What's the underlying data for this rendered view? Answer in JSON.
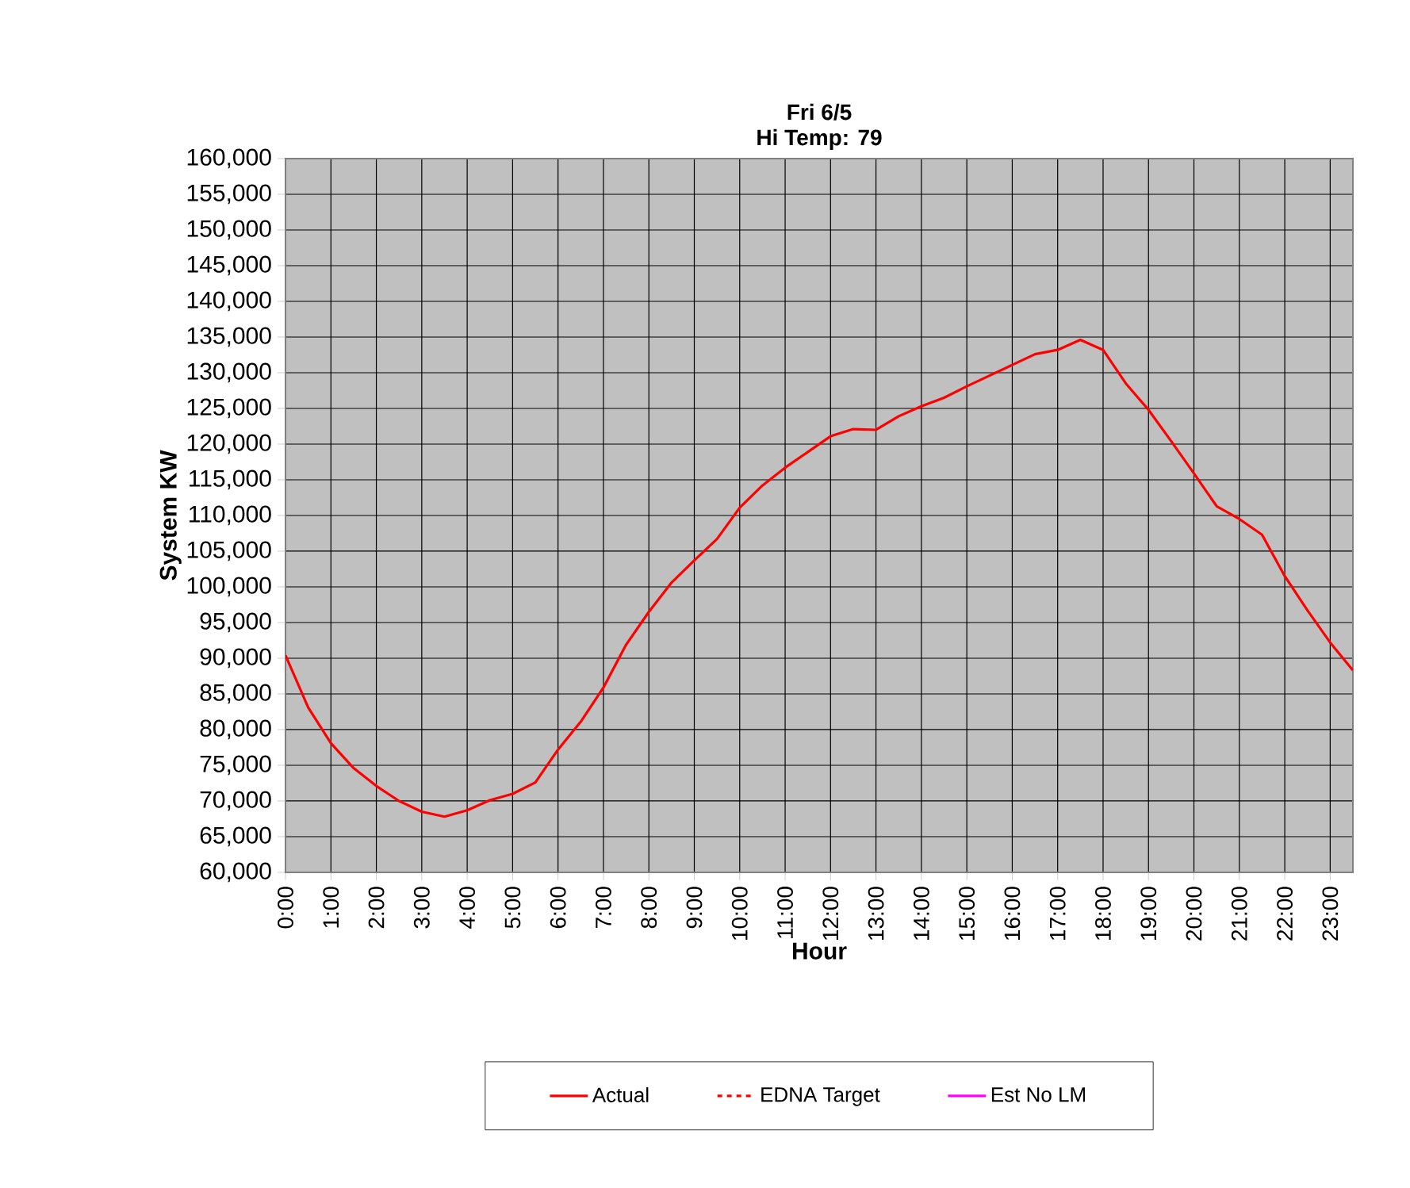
{
  "chart_data": {
    "type": "line",
    "title": "Fri 6/5",
    "subtitle": "Hi Temp: 79",
    "xlabel": "Hour",
    "ylabel": "System KW",
    "categories": [
      "0:00",
      null,
      "1:00",
      null,
      "2:00",
      null,
      "3:00",
      null,
      "4:00",
      null,
      "5:00",
      null,
      "6:00",
      null,
      "7:00",
      null,
      "8:00",
      null,
      "9:00",
      null,
      "10:00",
      null,
      "11:00",
      null,
      "12:00",
      null,
      "13:00",
      null,
      "14:00",
      null,
      "15:00",
      null,
      "16:00",
      null,
      "17:00",
      null,
      "18:00",
      null,
      "19:00",
      null,
      "20:00",
      null,
      "21:00",
      null,
      "22:00",
      null,
      "23:00",
      null
    ],
    "series": [
      {
        "name": "Actual",
        "color": "#ff0000",
        "line_style": "solid",
        "values": [
          90400,
          83100,
          78100,
          74600,
          72100,
          70000,
          68500,
          67800,
          68700,
          70100,
          71000,
          72600,
          77200,
          81100,
          85900,
          91900,
          96500,
          100600,
          103700,
          106700,
          111100,
          114200,
          116700,
          118900,
          121100,
          122100,
          122000,
          123900,
          125300,
          126500,
          128100,
          129600,
          131100,
          132600,
          133200,
          134600,
          133200,
          128500,
          124800,
          120400,
          115900,
          111300,
          109500,
          107300,
          101500,
          96700,
          92200,
          88300
        ]
      },
      {
        "name": "EDNA Target",
        "color": "#ff0000",
        "line_style": "dashed",
        "values": [
          null,
          null,
          null,
          null,
          null,
          null,
          null,
          null,
          null,
          null,
          null,
          null,
          null,
          null,
          null,
          null,
          null,
          null,
          null,
          null,
          null,
          null,
          null,
          null,
          null,
          null,
          null,
          null,
          null,
          null,
          null,
          null,
          null,
          null,
          null,
          null,
          null,
          null,
          null,
          null,
          null,
          null,
          null,
          null,
          null,
          null,
          null,
          null
        ]
      },
      {
        "name": "Est No LM",
        "color": "#ff00ff",
        "line_style": "solid",
        "values": [
          null,
          null,
          null,
          null,
          null,
          null,
          null,
          null,
          null,
          null,
          null,
          null,
          null,
          null,
          null,
          null,
          null,
          null,
          null,
          null,
          null,
          null,
          null,
          null,
          null,
          null,
          null,
          null,
          null,
          null,
          null,
          null,
          null,
          null,
          null,
          null,
          null,
          null,
          null,
          null,
          null,
          null,
          null,
          null,
          null,
          null,
          null,
          null
        ]
      }
    ],
    "ylim": [
      60000,
      160000
    ],
    "yticks": [
      {
        "value": 60000,
        "label": "60,000"
      },
      {
        "value": 65000,
        "label": "65,000"
      },
      {
        "value": 70000,
        "label": "70,000"
      },
      {
        "value": 75000,
        "label": "75,000"
      },
      {
        "value": 80000,
        "label": "80,000"
      },
      {
        "value": 85000,
        "label": "85,000"
      },
      {
        "value": 90000,
        "label": "90,000"
      },
      {
        "value": 95000,
        "label": "95,000"
      },
      {
        "value": 100000,
        "label": "100,000"
      },
      {
        "value": 105000,
        "label": "105,000"
      },
      {
        "value": 110000,
        "label": "110,000"
      },
      {
        "value": 115000,
        "label": "115,000"
      },
      {
        "value": 120000,
        "label": "120,000"
      },
      {
        "value": 125000,
        "label": "125,000"
      },
      {
        "value": 130000,
        "label": "130,000"
      },
      {
        "value": 135000,
        "label": "135,000"
      },
      {
        "value": 140000,
        "label": "140,000"
      },
      {
        "value": 145000,
        "label": "145,000"
      },
      {
        "value": 150000,
        "label": "150,000"
      },
      {
        "value": 155000,
        "label": "155,000"
      },
      {
        "value": 160000,
        "label": "160,000"
      }
    ],
    "grid": true,
    "legend": "bottom",
    "marker": "none"
  }
}
